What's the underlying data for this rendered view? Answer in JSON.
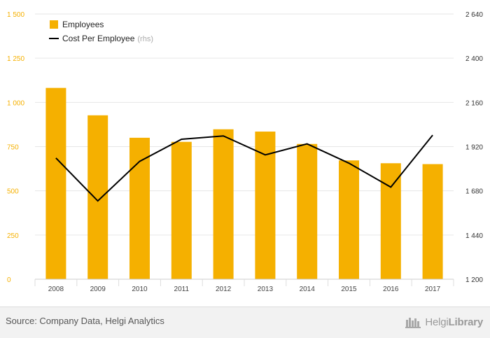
{
  "chart_data": {
    "type": "bar",
    "categories": [
      "2008",
      "2009",
      "2010",
      "2011",
      "2012",
      "2013",
      "2014",
      "2015",
      "2016",
      "2017"
    ],
    "series": [
      {
        "name": "Employees",
        "type": "bar",
        "axis": "left",
        "color": "#f5b000",
        "values": [
          1082,
          927,
          800,
          777,
          848,
          835,
          765,
          672,
          656,
          651
        ]
      },
      {
        "name": "Cost Per Employee",
        "type": "line",
        "axis": "right",
        "color": "#000000",
        "values": [
          1858,
          1625,
          1840,
          1960,
          1978,
          1875,
          1935,
          1830,
          1700,
          1982
        ]
      }
    ],
    "y_left": {
      "ylim": [
        0,
        1500
      ],
      "ticks": [
        0,
        250,
        500,
        750,
        1000,
        1250,
        1500
      ],
      "tick_labels": [
        "0",
        "250",
        "500",
        "750",
        "1 000",
        "1 250",
        "1 500"
      ],
      "color": "#f5b000"
    },
    "y_right": {
      "ylim": [
        1200,
        2640
      ],
      "ticks": [
        1200,
        1440,
        1680,
        1920,
        2160,
        2400,
        2640
      ],
      "tick_labels": [
        "1 200",
        "1 440",
        "1 680",
        "1 920",
        "2 160",
        "2 400",
        "2 640"
      ]
    },
    "legend": {
      "placement": "top-left",
      "entries": [
        {
          "label": "Employees",
          "suffix": ""
        },
        {
          "label": "Cost Per Employee",
          "suffix": "(rhs)"
        }
      ]
    },
    "grid": true,
    "title": "",
    "xlabel": "",
    "ylabel": ""
  },
  "footer": {
    "source": "Source: Company Data, Helgi Analytics",
    "logo_light": "Helgi",
    "logo_bold": "Library"
  }
}
